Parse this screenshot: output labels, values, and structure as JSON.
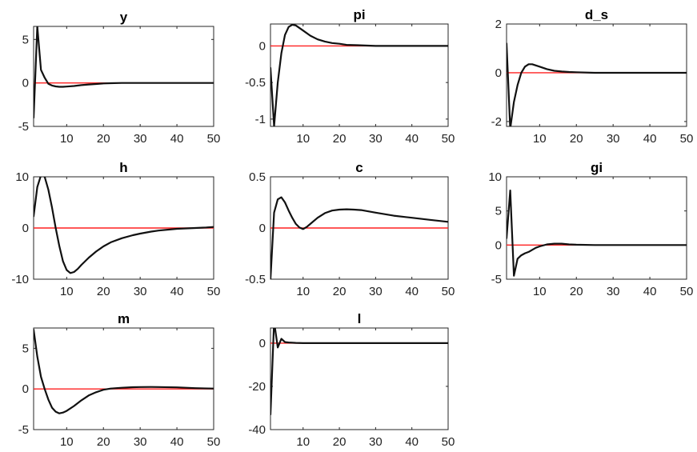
{
  "chart_data": [
    {
      "type": "line",
      "title": "y",
      "xlim": [
        1,
        50
      ],
      "ylim": [
        -5,
        6.5
      ],
      "xticks": [
        10,
        20,
        30,
        40,
        50
      ],
      "yticks": [
        -5,
        0,
        5
      ],
      "zero_line": true,
      "colors": {
        "series": "#111111",
        "zero_line": "#ff2020"
      },
      "series": [
        {
          "x": [
            1,
            2,
            3,
            4,
            5,
            6,
            7,
            8,
            9,
            10,
            12,
            14,
            16,
            18,
            20,
            22,
            25,
            30,
            35,
            40,
            45,
            50
          ],
          "values": [
            -4,
            6.5,
            1.5,
            0.6,
            -0.1,
            -0.3,
            -0.4,
            -0.45,
            -0.45,
            -0.42,
            -0.35,
            -0.25,
            -0.18,
            -0.12,
            -0.06,
            -0.03,
            0,
            0,
            0,
            0,
            0,
            0
          ]
        }
      ]
    },
    {
      "type": "line",
      "title": "pi",
      "xlim": [
        1,
        50
      ],
      "ylim": [
        -1.1,
        0.3
      ],
      "xticks": [
        10,
        20,
        30,
        40,
        50
      ],
      "yticks": [
        -1,
        -0.5,
        0
      ],
      "zero_line": true,
      "colors": {
        "series": "#111111",
        "zero_line": "#ff2020"
      },
      "series": [
        {
          "x": [
            1,
            2,
            3,
            4,
            5,
            6,
            7,
            8,
            10,
            12,
            14,
            16,
            18,
            20,
            22,
            25,
            30,
            35,
            40,
            45,
            50
          ],
          "values": [
            -0.3,
            -1.1,
            -0.5,
            -0.1,
            0.15,
            0.26,
            0.29,
            0.28,
            0.21,
            0.14,
            0.09,
            0.06,
            0.04,
            0.03,
            0.015,
            0.01,
            0,
            0,
            0,
            0,
            0
          ]
        }
      ]
    },
    {
      "type": "line",
      "title": "d_s",
      "xlim": [
        1,
        50
      ],
      "ylim": [
        -2.2,
        2
      ],
      "xticks": [
        10,
        20,
        30,
        40,
        50
      ],
      "yticks": [
        -2,
        0,
        2
      ],
      "zero_line": true,
      "colors": {
        "series": "#111111",
        "zero_line": "#ff2020"
      },
      "series": [
        {
          "x": [
            1,
            2,
            3,
            4,
            5,
            6,
            7,
            8,
            9,
            10,
            12,
            14,
            16,
            18,
            20,
            25,
            30,
            35,
            40,
            45,
            50
          ],
          "values": [
            1.2,
            -2.3,
            -1.2,
            -0.5,
            0,
            0.25,
            0.35,
            0.35,
            0.3,
            0.25,
            0.15,
            0.08,
            0.05,
            0.03,
            0.02,
            0,
            0,
            0,
            0,
            0,
            0
          ]
        }
      ]
    },
    {
      "type": "line",
      "title": "h",
      "xlim": [
        1,
        50
      ],
      "ylim": [
        -10,
        10
      ],
      "xticks": [
        10,
        20,
        30,
        40,
        50
      ],
      "yticks": [
        -10,
        0,
        10
      ],
      "zero_line": true,
      "colors": {
        "series": "#111111",
        "zero_line": "#ff2020"
      },
      "series": [
        {
          "x": [
            1,
            2,
            3,
            4,
            5,
            6,
            7,
            8,
            9,
            10,
            11,
            12,
            13,
            14,
            16,
            18,
            20,
            22,
            25,
            28,
            30,
            33,
            35,
            38,
            40,
            45,
            48,
            50
          ],
          "values": [
            2.3,
            8,
            10.3,
            10,
            7.5,
            4,
            0,
            -3.5,
            -6.5,
            -8.2,
            -8.8,
            -8.6,
            -8,
            -7.2,
            -5.8,
            -4.6,
            -3.6,
            -2.8,
            -2,
            -1.4,
            -1.1,
            -0.7,
            -0.5,
            -0.3,
            -0.15,
            0,
            0.1,
            0.2
          ]
        }
      ]
    },
    {
      "type": "line",
      "title": "c",
      "xlim": [
        1,
        50
      ],
      "ylim": [
        -0.5,
        0.5
      ],
      "xticks": [
        10,
        20,
        30,
        40,
        50
      ],
      "yticks": [
        -0.5,
        0,
        0.5
      ],
      "zero_line": true,
      "colors": {
        "series": "#111111",
        "zero_line": "#ff2020"
      },
      "series": [
        {
          "x": [
            1,
            2,
            3,
            4,
            5,
            6,
            7,
            8,
            9,
            10,
            11,
            12,
            14,
            16,
            18,
            20,
            22,
            24,
            26,
            30,
            35,
            40,
            45,
            50
          ],
          "values": [
            -0.5,
            0.15,
            0.28,
            0.3,
            0.25,
            0.17,
            0.1,
            0.04,
            0.005,
            -0.01,
            0.01,
            0.04,
            0.1,
            0.145,
            0.17,
            0.18,
            0.183,
            0.18,
            0.175,
            0.15,
            0.12,
            0.1,
            0.08,
            0.06
          ]
        }
      ]
    },
    {
      "type": "line",
      "title": "gi",
      "xlim": [
        1,
        50
      ],
      "ylim": [
        -5,
        10
      ],
      "xticks": [
        10,
        20,
        30,
        40,
        50
      ],
      "yticks": [
        -5,
        0,
        5,
        10
      ],
      "zero_line": true,
      "colors": {
        "series": "#111111",
        "zero_line": "#ff2020"
      },
      "series": [
        {
          "x": [
            1,
            2,
            3,
            4,
            5,
            6,
            7,
            8,
            9,
            10,
            12,
            14,
            16,
            18,
            20,
            25,
            30,
            35,
            40,
            45,
            50
          ],
          "values": [
            1,
            8,
            -4.5,
            -2,
            -1.5,
            -1.2,
            -1,
            -0.7,
            -0.4,
            -0.2,
            0.1,
            0.2,
            0.2,
            0.1,
            0.05,
            0,
            0,
            0,
            0,
            0,
            0
          ]
        }
      ]
    },
    {
      "type": "line",
      "title": "m",
      "xlim": [
        1,
        50
      ],
      "ylim": [
        -5,
        7.5
      ],
      "xticks": [
        10,
        20,
        30,
        40,
        50
      ],
      "yticks": [
        -5,
        0,
        5
      ],
      "zero_line": true,
      "colors": {
        "series": "#111111",
        "zero_line": "#ff2020"
      },
      "series": [
        {
          "x": [
            1,
            2,
            3,
            4,
            5,
            6,
            7,
            8,
            9,
            10,
            12,
            14,
            16,
            18,
            20,
            22,
            25,
            28,
            30,
            33,
            35,
            40,
            45,
            50
          ],
          "values": [
            7.3,
            4,
            1.5,
            0,
            -1.3,
            -2.3,
            -2.8,
            -3,
            -2.9,
            -2.7,
            -2.1,
            -1.4,
            -0.8,
            -0.4,
            -0.1,
            0.05,
            0.15,
            0.22,
            0.24,
            0.25,
            0.24,
            0.2,
            0.1,
            0.05
          ]
        }
      ]
    },
    {
      "type": "line",
      "title": "l",
      "xlim": [
        1,
        50
      ],
      "ylim": [
        -40,
        7
      ],
      "xticks": [
        10,
        20,
        30,
        40,
        50
      ],
      "yticks": [
        -40,
        -20,
        0
      ],
      "zero_line": true,
      "colors": {
        "series": "#111111",
        "zero_line": "#ff2020"
      },
      "series": [
        {
          "x": [
            1,
            2,
            3,
            4,
            5,
            6,
            8,
            10,
            15,
            20,
            30,
            40,
            50
          ],
          "values": [
            -33,
            10,
            -2,
            2,
            0.5,
            0.3,
            0.1,
            0,
            0,
            0,
            0,
            0,
            0
          ]
        }
      ]
    }
  ]
}
